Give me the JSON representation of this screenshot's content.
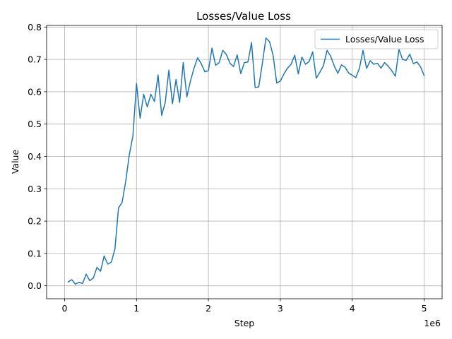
{
  "chart_data": {
    "type": "line",
    "title": "Losses/Value Loss",
    "xlabel": "Step",
    "ylabel": "Value",
    "x_offset_label": "1e6",
    "xlim": [
      -250000,
      5250000
    ],
    "ylim": [
      -0.04,
      0.805
    ],
    "xticks": [
      0,
      1000000,
      2000000,
      3000000,
      4000000,
      5000000
    ],
    "xtick_labels": [
      "0",
      "1",
      "2",
      "3",
      "4",
      "5"
    ],
    "yticks": [
      0.0,
      0.1,
      0.2,
      0.3,
      0.4,
      0.5,
      0.6,
      0.7,
      0.8
    ],
    "ytick_labels": [
      "0.0",
      "0.1",
      "0.2",
      "0.3",
      "0.4",
      "0.5",
      "0.6",
      "0.7",
      "0.8"
    ],
    "grid": true,
    "legend_position": "top-right",
    "series": [
      {
        "name": "Losses/Value Loss",
        "color": "#1f77b4",
        "x": [
          50000,
          100000,
          150000,
          200000,
          250000,
          300000,
          350000,
          400000,
          450000,
          500000,
          550000,
          600000,
          650000,
          700000,
          750000,
          800000,
          850000,
          900000,
          950000,
          1000000,
          1050000,
          1100000,
          1150000,
          1200000,
          1250000,
          1300000,
          1350000,
          1400000,
          1450000,
          1500000,
          1550000,
          1600000,
          1650000,
          1700000,
          1750000,
          1800000,
          1850000,
          1900000,
          1950000,
          2000000,
          2050000,
          2100000,
          2150000,
          2200000,
          2250000,
          2300000,
          2350000,
          2400000,
          2450000,
          2500000,
          2550000,
          2600000,
          2650000,
          2700000,
          2750000,
          2800000,
          2850000,
          2900000,
          2950000,
          3000000,
          3050000,
          3100000,
          3150000,
          3200000,
          3250000,
          3300000,
          3350000,
          3400000,
          3450000,
          3500000,
          3550000,
          3600000,
          3650000,
          3700000,
          3750000,
          3800000,
          3850000,
          3900000,
          3950000,
          4000000,
          4050000,
          4100000,
          4150000,
          4200000,
          4250000,
          4300000,
          4350000,
          4400000,
          4450000,
          4500000,
          4550000,
          4600000,
          4650000,
          4700000,
          4750000,
          4800000,
          4850000,
          4900000,
          4950000,
          5000000
        ],
        "y": [
          0.012,
          0.019,
          0.005,
          0.011,
          0.007,
          0.036,
          0.016,
          0.024,
          0.057,
          0.045,
          0.092,
          0.067,
          0.073,
          0.114,
          0.241,
          0.258,
          0.323,
          0.405,
          0.463,
          0.625,
          0.518,
          0.592,
          0.553,
          0.592,
          0.57,
          0.652,
          0.527,
          0.567,
          0.667,
          0.563,
          0.638,
          0.567,
          0.69,
          0.584,
          0.633,
          0.673,
          0.705,
          0.687,
          0.662,
          0.665,
          0.735,
          0.682,
          0.69,
          0.728,
          0.715,
          0.688,
          0.678,
          0.714,
          0.656,
          0.69,
          0.692,
          0.752,
          0.613,
          0.615,
          0.687,
          0.766,
          0.755,
          0.712,
          0.627,
          0.633,
          0.655,
          0.673,
          0.685,
          0.713,
          0.655,
          0.707,
          0.685,
          0.693,
          0.723,
          0.642,
          0.66,
          0.681,
          0.728,
          0.71,
          0.68,
          0.657,
          0.683,
          0.676,
          0.658,
          0.651,
          0.644,
          0.672,
          0.728,
          0.672,
          0.696,
          0.685,
          0.688,
          0.673,
          0.69,
          0.679,
          0.665,
          0.648,
          0.731,
          0.7,
          0.697,
          0.716,
          0.687,
          0.692,
          0.677,
          0.65
        ]
      }
    ]
  }
}
